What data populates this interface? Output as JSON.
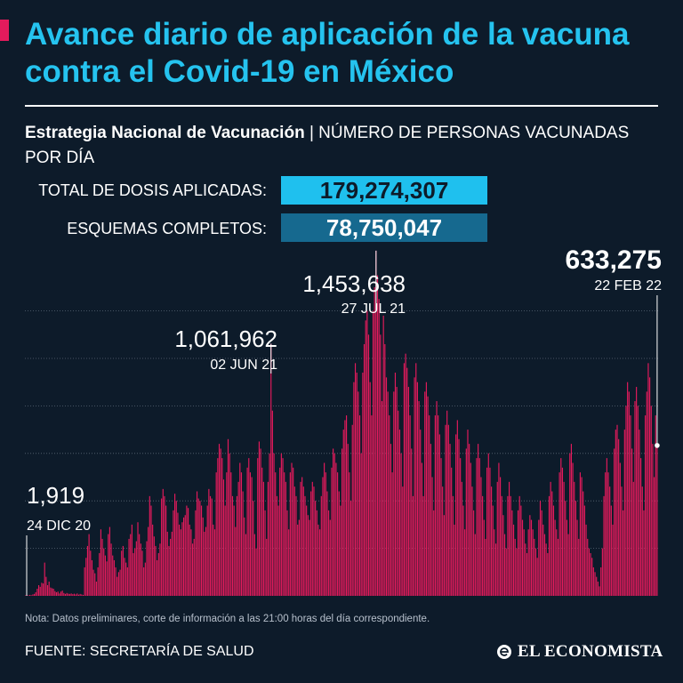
{
  "header": {
    "title": "Avance diario de aplicación de la vacuna contra el Covid-19 en México",
    "subtitle_bold": "Estrategia Nacional de Vacunación",
    "subtitle_sep": " | ",
    "subtitle_rest": "NÚMERO DE PERSONAS VACUNADAS POR DÍA"
  },
  "stats": {
    "total_label": "TOTAL DE DOSIS APLICADAS:",
    "total_value": "179,274,307",
    "esquemas_label": "ESQUEMAS COMPLETOS:",
    "esquemas_value": "78,750,047"
  },
  "chart_data": {
    "type": "bar",
    "title": "",
    "xlabel": "",
    "ylabel": "",
    "x_range": [
      "2020-12-24",
      "2022-02-22"
    ],
    "ylim": [
      0,
      1600000
    ],
    "grid": true,
    "bar_color": "#e31b5c",
    "annotations": [
      {
        "date": "24 DIC 20",
        "value": 1919,
        "label": "1,919"
      },
      {
        "date": "02 JUN 21",
        "value": 1061962,
        "label": "1,061,962"
      },
      {
        "date": "27 JUL 21",
        "value": 1453638,
        "label": "1,453,638"
      },
      {
        "date": "22 FEB 22",
        "value": 633275,
        "label": "633,275"
      }
    ],
    "values": [
      1919,
      3000,
      2000,
      4000,
      2500,
      6000,
      8000,
      15000,
      30000,
      45000,
      38000,
      55000,
      52000,
      140000,
      80000,
      45000,
      60000,
      35000,
      32000,
      30000,
      20000,
      15000,
      18000,
      10000,
      18000,
      22000,
      12000,
      8000,
      12000,
      9000,
      8000,
      10000,
      7000,
      9000,
      6000,
      10000,
      5000,
      8000,
      6000,
      4000,
      120000,
      160000,
      210000,
      260000,
      190000,
      150000,
      110000,
      95000,
      60000,
      120000,
      180000,
      280000,
      240000,
      200000,
      170000,
      145000,
      260000,
      290000,
      220000,
      170000,
      150000,
      120000,
      80000,
      100000,
      110000,
      190000,
      210000,
      160000,
      140000,
      120000,
      240000,
      260000,
      300000,
      180000,
      200000,
      230000,
      310000,
      260000,
      220000,
      190000,
      120000,
      140000,
      230000,
      290000,
      420000,
      380000,
      300000,
      250000,
      210000,
      150000,
      180000,
      220000,
      410000,
      450000,
      420000,
      380000,
      270000,
      210000,
      240000,
      270000,
      360000,
      430000,
      400000,
      350000,
      300000,
      280000,
      310000,
      330000,
      340000,
      380000,
      370000,
      300000,
      280000,
      220000,
      240000,
      360000,
      440000,
      410000,
      400000,
      380000,
      330000,
      270000,
      290000,
      380000,
      450000,
      420000,
      410000,
      300000,
      280000,
      520000,
      580000,
      640000,
      620000,
      580000,
      490000,
      380000,
      520000,
      660000,
      600000,
      520000,
      420000,
      380000,
      290000,
      420000,
      480000,
      560000,
      520000,
      440000,
      330000,
      260000,
      540000,
      580000,
      520000,
      500000,
      400000,
      260000,
      200000,
      580000,
      650000,
      620000,
      540000,
      480000,
      360000,
      240000,
      480000,
      600000,
      1061962,
      780000,
      600000,
      520000,
      420000,
      380000,
      540000,
      600000,
      580000,
      520000,
      480000,
      360000,
      280000,
      520000,
      560000,
      540000,
      460000,
      420000,
      300000,
      320000,
      480000,
      500000,
      460000,
      420000,
      380000,
      340000,
      320000,
      440000,
      480000,
      460000,
      400000,
      360000,
      300000,
      280000,
      420000,
      500000,
      560000,
      520000,
      440000,
      360000,
      320000,
      540000,
      620000,
      600000,
      560000,
      520000,
      440000,
      380000,
      620000,
      700000,
      740000,
      760000,
      640000,
      520000,
      400000,
      720000,
      900000,
      980000,
      940000,
      860000,
      760000,
      600000,
      940000,
      1060000,
      1160000,
      1200000,
      1100000,
      900000,
      760000,
      1200000,
      1300000,
      1453638,
      1350000,
      1250000,
      1100000,
      820000,
      1180000,
      1060000,
      920000,
      860000,
      760000,
      640000,
      520000,
      860000,
      940000,
      880000,
      780000,
      700000,
      600000,
      460000,
      980000,
      1020000,
      960000,
      880000,
      760000,
      620000,
      420000,
      920000,
      980000,
      900000,
      820000,
      700000,
      560000,
      420000,
      860000,
      900000,
      840000,
      760000,
      640000,
      500000,
      360000,
      760000,
      820000,
      760000,
      680000,
      580000,
      460000,
      340000,
      720000,
      780000,
      720000,
      640000,
      540000,
      420000,
      300000,
      680000,
      740000,
      660000,
      580000,
      480000,
      380000,
      280000,
      620000,
      700000,
      640000,
      560000,
      460000,
      360000,
      260000,
      580000,
      640000,
      580000,
      500000,
      420000,
      320000,
      240000,
      540000,
      600000,
      540000,
      460000,
      380000,
      280000,
      220000,
      480000,
      560000,
      500000,
      420000,
      340000,
      260000,
      200000,
      420000,
      480000,
      420000,
      360000,
      300000,
      240000,
      200000,
      360000,
      420000,
      380000,
      320000,
      280000,
      220000,
      180000,
      280000,
      340000,
      320000,
      280000,
      240000,
      200000,
      160000,
      320000,
      400000,
      360000,
      300000,
      260000,
      220000,
      180000,
      420000,
      480000,
      440000,
      380000,
      320000,
      280000,
      240000,
      520000,
      580000,
      540000,
      480000,
      400000,
      320000,
      260000,
      600000,
      640000,
      560000,
      480000,
      400000,
      320000,
      240000,
      520000,
      500000,
      440000,
      380000,
      300000,
      240000,
      200000,
      180000,
      160000,
      120000,
      100000,
      80000,
      60000,
      40000,
      120000,
      200000,
      420000,
      520000,
      580000,
      520000,
      460000,
      380000,
      300000,
      620000,
      700000,
      720000,
      660000,
      560000,
      460000,
      360000,
      700000,
      800000,
      900000,
      860000,
      760000,
      620000,
      480000,
      820000,
      880000,
      800000,
      700000,
      580000,
      460000,
      360000,
      760000,
      860000,
      980000,
      920000,
      800000,
      640000,
      500000,
      760000,
      633275
    ]
  },
  "footer": {
    "note": "Nota: Datos preliminares, corte de información a las 21:00 horas del día correspondiente.",
    "source": "FUENTE: SECRETARÍA DE SALUD",
    "logo_text": "EL ECONOMISTA"
  }
}
